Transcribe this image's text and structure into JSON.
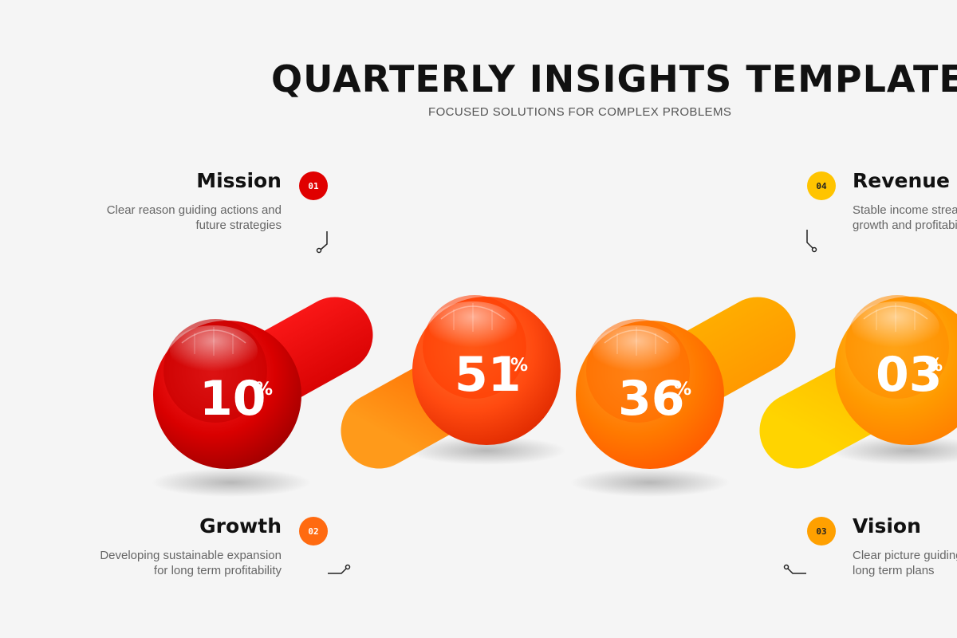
{
  "header": {
    "title": "QUARTERLY INSIGHTS TEMPLATE",
    "subtitle": "FOCUSED SOLUTIONS FOR COMPLEX PROBLEMS"
  },
  "items": [
    {
      "number": "01",
      "title": "Mission",
      "desc_line1": "Clear reason guiding actions and",
      "desc_line2": "future strategies",
      "value": "10",
      "unit": "%",
      "color": "#d90000"
    },
    {
      "number": "02",
      "title": "Growth",
      "desc_line1": "Developing sustainable expansion",
      "desc_line2": "for long term profitability",
      "value": "51",
      "unit": "%",
      "color": "#ff5a0a"
    },
    {
      "number": "03",
      "title": "Vision",
      "desc_line1": "Clear picture guiding",
      "desc_line2": "long term plans",
      "value": "36",
      "unit": "%",
      "color": "#ff8a00"
    },
    {
      "number": "04",
      "title": "Revenue",
      "desc_line1": "Stable income streams",
      "desc_line2": "growth and profitability",
      "value": "03",
      "unit": "%",
      "color": "#ffb300"
    }
  ]
}
